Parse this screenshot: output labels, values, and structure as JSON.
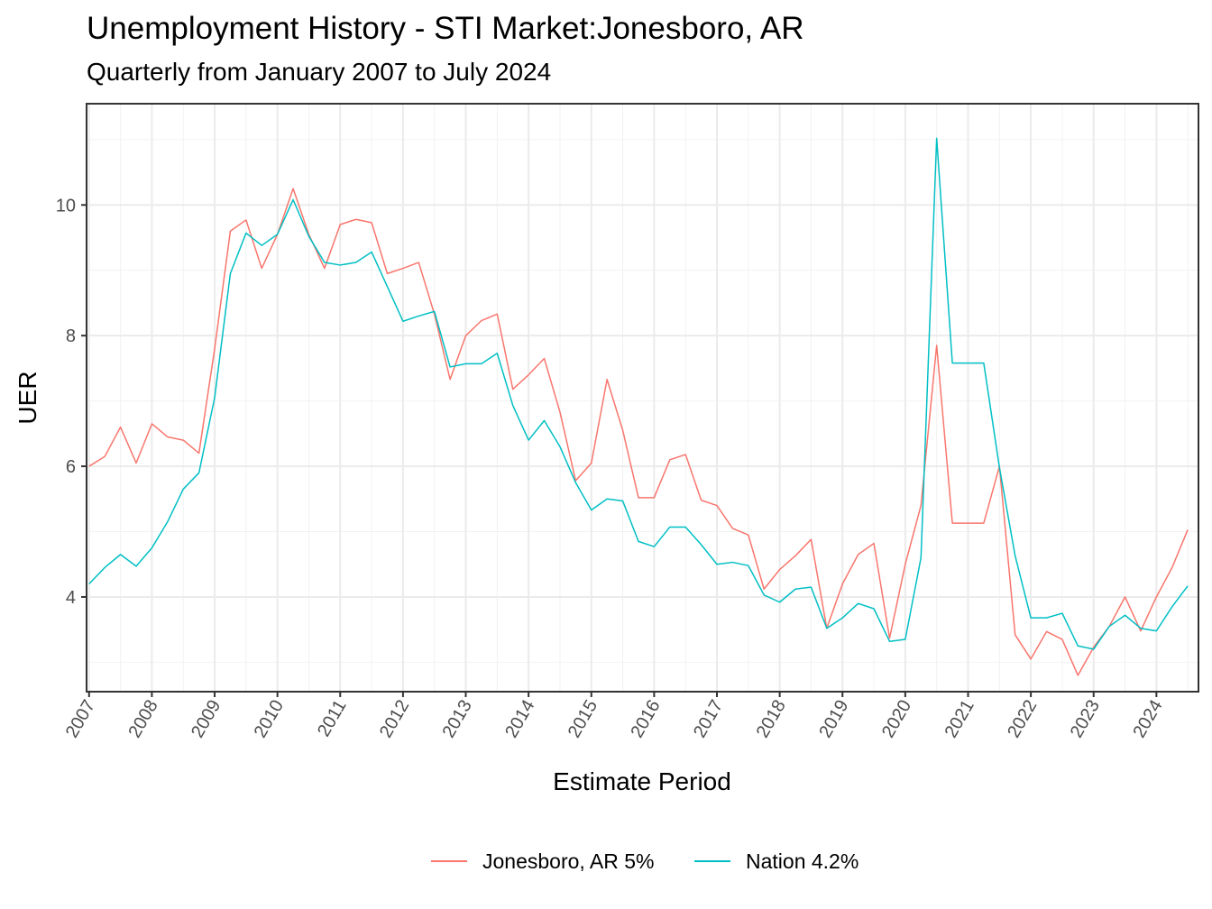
{
  "chart_data": {
    "type": "line",
    "title": "Unemployment History - STI Market:Jonesboro, AR",
    "subtitle": "Quarterly from January 2007 to July 2024",
    "xlabel": "Estimate Period",
    "ylabel": "UER",
    "x_ticks": [
      "2007",
      "2008",
      "2009",
      "2010",
      "2011",
      "2012",
      "2013",
      "2014",
      "2015",
      "2016",
      "2017",
      "2018",
      "2019",
      "2020",
      "2021",
      "2022",
      "2023",
      "2024"
    ],
    "y_ticks": [
      4,
      6,
      8,
      10
    ],
    "xlim": [
      2006.96,
      2024.67
    ],
    "ylim": [
      2.55,
      11.55
    ],
    "grid": true,
    "legend_position": "bottom",
    "x": [
      2007.0,
      2007.25,
      2007.5,
      2007.75,
      2008.0,
      2008.25,
      2008.5,
      2008.75,
      2009.0,
      2009.25,
      2009.5,
      2009.75,
      2010.0,
      2010.25,
      2010.5,
      2010.75,
      2011.0,
      2011.25,
      2011.5,
      2011.75,
      2012.0,
      2012.25,
      2012.5,
      2012.75,
      2013.0,
      2013.25,
      2013.5,
      2013.75,
      2014.0,
      2014.25,
      2014.5,
      2014.75,
      2015.0,
      2015.25,
      2015.5,
      2015.75,
      2016.0,
      2016.25,
      2016.5,
      2016.75,
      2017.0,
      2017.25,
      2017.5,
      2017.75,
      2018.0,
      2018.25,
      2018.5,
      2018.75,
      2019.0,
      2019.25,
      2019.5,
      2019.75,
      2020.0,
      2020.25,
      2020.5,
      2020.75,
      2021.0,
      2021.25,
      2021.5,
      2021.75,
      2022.0,
      2022.25,
      2022.5,
      2022.75,
      2023.0,
      2023.25,
      2023.5,
      2023.75,
      2024.0,
      2024.25,
      2024.5
    ],
    "series": [
      {
        "name": "Jonesboro, AR 5%",
        "color": "#F8766D",
        "values": [
          6.0,
          6.15,
          6.6,
          6.05,
          6.65,
          6.45,
          6.4,
          6.2,
          7.8,
          9.6,
          9.77,
          9.03,
          9.55,
          10.25,
          9.55,
          9.03,
          9.7,
          9.78,
          9.73,
          8.95,
          9.03,
          9.12,
          8.33,
          7.33,
          8.0,
          8.23,
          8.33,
          7.18,
          7.4,
          7.65,
          6.83,
          5.78,
          6.05,
          7.33,
          6.55,
          5.52,
          5.52,
          6.1,
          6.18,
          5.48,
          5.4,
          5.05,
          4.95,
          4.12,
          4.42,
          4.63,
          4.88,
          3.52,
          4.2,
          4.65,
          4.82,
          3.37,
          4.5,
          5.4,
          7.85,
          5.13,
          5.13,
          5.13,
          6.0,
          3.42,
          3.05,
          3.47,
          3.35,
          2.8,
          3.23,
          3.55,
          4.0,
          3.48,
          4.0,
          4.45,
          5.03
        ]
      },
      {
        "name": "Nation 4.2%",
        "color": "#00BFC4",
        "values": [
          4.2,
          4.45,
          4.65,
          4.47,
          4.75,
          5.15,
          5.65,
          5.9,
          7.05,
          8.95,
          9.57,
          9.38,
          9.55,
          10.08,
          9.52,
          9.12,
          9.08,
          9.12,
          9.28,
          8.75,
          8.22,
          8.3,
          8.37,
          7.52,
          7.57,
          7.57,
          7.73,
          6.93,
          6.4,
          6.7,
          6.3,
          5.75,
          5.33,
          5.5,
          5.47,
          4.85,
          4.77,
          5.07,
          5.07,
          4.8,
          4.5,
          4.53,
          4.48,
          4.03,
          3.92,
          4.12,
          4.15,
          3.52,
          3.68,
          3.9,
          3.82,
          3.32,
          3.35,
          4.6,
          11.02,
          7.58,
          7.58,
          7.58,
          5.98,
          4.63,
          3.68,
          3.68,
          3.75,
          3.25,
          3.2,
          3.55,
          3.72,
          3.52,
          3.48,
          3.85,
          4.17
        ]
      }
    ]
  }
}
